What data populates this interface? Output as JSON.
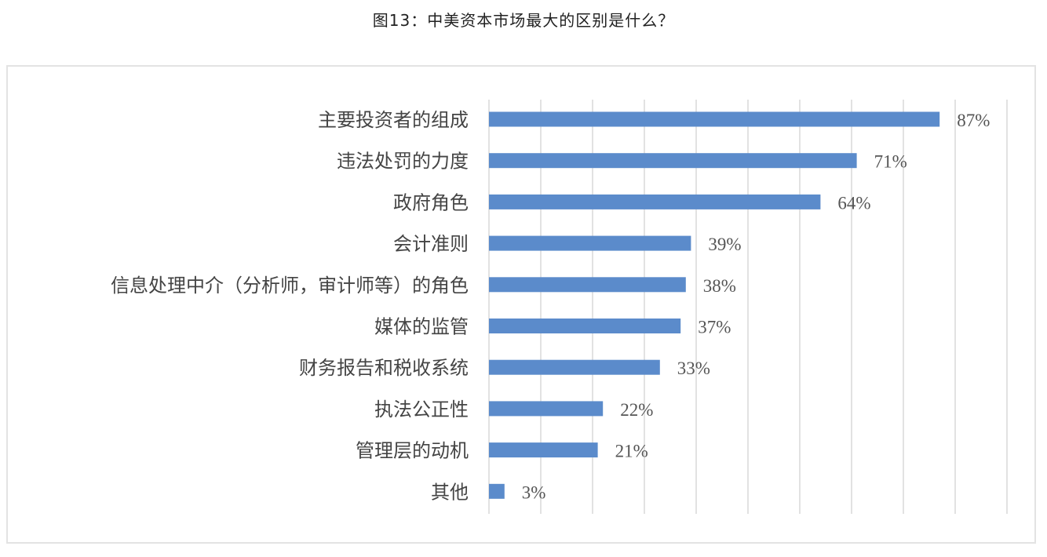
{
  "title": "图13：中美资本市场最大的区别是什么？",
  "chart_data": {
    "type": "bar",
    "orientation": "horizontal",
    "title": "图13：中美资本市场最大的区别是什么？",
    "categories": [
      "主要投资者的组成",
      "违法处罚的力度",
      "政府角色",
      "会计准则",
      "信息处理中介（分析师，审计师等）的角色",
      "媒体的监管",
      "财务报告和税收系统",
      "执法公正性",
      "管理层的动机",
      "其他"
    ],
    "values": [
      87,
      71,
      64,
      39,
      38,
      37,
      33,
      22,
      21,
      3
    ],
    "data_labels": [
      "87%",
      "71%",
      "64%",
      "39%",
      "38%",
      "37%",
      "33%",
      "22%",
      "21%",
      "3%"
    ],
    "xlim": [
      0,
      100
    ],
    "grid": true,
    "bar_color": "#5b8bcb",
    "legend": "none"
  }
}
